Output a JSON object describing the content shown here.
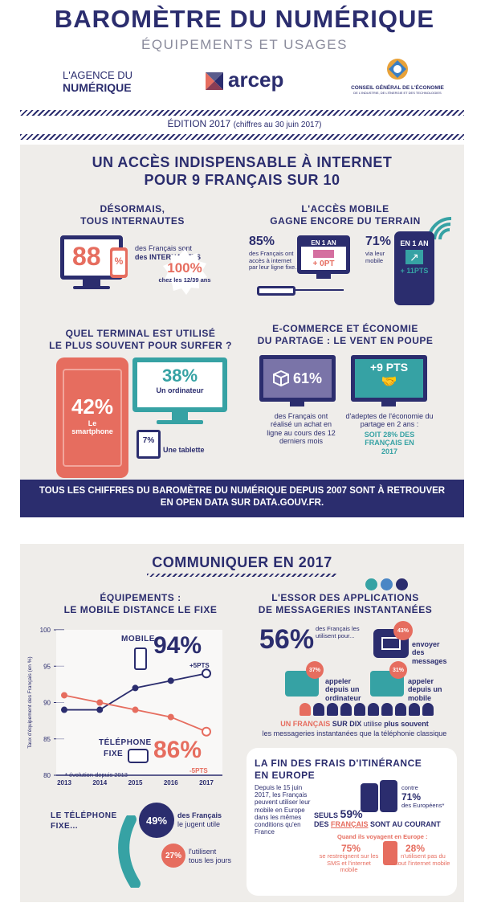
{
  "header": {
    "title": "BAROMÈTRE DU NUMÉRIQUE",
    "subtitle": "ÉQUIPEMENTS ET USAGES",
    "logo_agence_line1": "L'AGENCE DU",
    "logo_agence_line2": "NUMÉRIQUE",
    "logo_arcep": "arcep",
    "logo_cge_line1": "CONSEIL GÉNÉRAL DE L'ÉCONOMIE",
    "logo_cge_line2": "DE L'INDUSTRIE, DE L'ÉNERGIE ET DES TECHNOLOGIES",
    "edition": "ÉDITION 2017",
    "edition_note": "(chiffres au 30 juin 2017)"
  },
  "section1": {
    "title_line1": "UN ACCÈS INDISPENSABLE À INTERNET",
    "title_line2": "POUR 9 FRANÇAIS SUR 10",
    "internautes": {
      "heading_line1": "DÉSORMAIS,",
      "heading_line2": "TOUS INTERNAUTES",
      "value": "88",
      "pct": "%",
      "text1": "des Français sont",
      "text2": "des INTERNAUTES",
      "badge_value": "100%",
      "badge_text": "chez les 12/39 ans"
    },
    "mobile": {
      "heading_line1": "L'ACCÈS MOBILE",
      "heading_line2": "GAGNE ENCORE DU TERRAIN",
      "fixe_value": "85%",
      "fixe_text": "des Français ont accès à internet par leur ligne fixe...",
      "fixe_box_label": "EN 1 AN",
      "fixe_box_value": "+ 0PT",
      "mobile_value": "71%",
      "mobile_text": "via leur mobile",
      "mobile_box_label": "EN 1 AN",
      "mobile_box_value": "+ 11PTS"
    },
    "terminal": {
      "heading_line1": "QUEL TERMINAL EST UTILISÉ",
      "heading_line2": "LE PLUS SOUVENT POUR SURFER ?",
      "smartphone_value": "42%",
      "smartphone_label_line1": "Le",
      "smartphone_label_line2": "smartphone",
      "ordinateur_value": "38%",
      "ordinateur_label": "Un ordinateur",
      "tablette_value": "7%",
      "tablette_label": "Une tablette"
    },
    "ecommerce": {
      "heading_line1": "E-COMMERCE ET ÉCONOMIE",
      "heading_line2": "DU PARTAGE : LE VENT EN POUPE",
      "achat_value": "61%",
      "achat_text": "des Français ont réalisé un achat en ligne au cours des 12 derniers mois",
      "partage_value": "+9 PTS",
      "partage_text": "d'adeptes de l'économie du partage en 2 ans :",
      "partage_highlight": "SOIT 28% DES FRANÇAIS EN 2017"
    },
    "banner_line1": "TOUS LES CHIFFRES DU BAROMÈTRE DU NUMÉRIQUE DEPUIS 2007 SONT À RETROUVER",
    "banner_line2": "EN OPEN DATA SUR DATA.GOUV.FR."
  },
  "section2": {
    "title": "COMMUNIQUER EN 2017",
    "equipements": {
      "heading_line1": "ÉQUIPEMENTS :",
      "heading_line2": "LE MOBILE DISTANCE LE FIXE",
      "mobile_label": "MOBILE",
      "mobile_value": "94%",
      "mobile_delta": "+5PTS",
      "fixe_label_line1": "TÉLÉPHONE",
      "fixe_label_line2": "FIXE",
      "fixe_value": "86%",
      "fixe_delta": "-5PTS",
      "footnote": "* évolution depuis 2013"
    },
    "telephone_fixe": {
      "label_line1": "LE TÉLÉPHONE",
      "label_line2": "FIXE...",
      "value1": "49%",
      "text1_line1": "des Français",
      "text1_line2": "le jugent utile",
      "value2": "27%",
      "text2_line1": "l'utilisent",
      "text2_line2": "tous les jours"
    },
    "messageries": {
      "heading_line1": "L'ESSOR DES APPLICATIONS",
      "heading_line2": "DE MESSAGERIES INSTANTANÉES",
      "value": "56%",
      "text": "des Français les utilisent pour...",
      "messages_value": "43%",
      "messages_text": "envoyer des messages",
      "ordinateur_value": "37%",
      "ordinateur_text": "appeler depuis un ordinateur",
      "mobile_value": "31%",
      "mobile_text": "appeler depuis un mobile",
      "dix_highlight": "UN FRANÇAIS",
      "dix_bold": "SUR DIX",
      "dix_text": "utilise",
      "dix_bold2": "plus souvent",
      "dix_line2": "les messageries instantanées que la téléphonie classique"
    },
    "itinerance": {
      "heading_line1": "LA FIN DES FRAIS D'ITINÉRANCE",
      "heading_line2": "EN EUROPE",
      "text": "Depuis le 15 juin 2017, les Français peuvent utiliser leur mobile en Europe dans les mêmes conditions qu'en France",
      "contre_text": "contre",
      "europeens_value": "71%",
      "europeens_text": "des Européens*",
      "seuls_text": "SEULS",
      "seuls_value": "59%",
      "des_text": "DES",
      "francais_text": "FRANÇAIS",
      "courant_text": "SONT AU COURANT",
      "voyage_text": "Quand ils voyagent en Europe :",
      "restreignent_value": "75%",
      "restreignent_text": "se restreignent sur les SMS et l'internet mobile",
      "nutilisent_value": "28%",
      "nutilisent_text": "n'utilisent pas du tout l'internet mobile"
    }
  },
  "chart_data": {
    "type": "line",
    "x": [
      "2013",
      "2014",
      "2015",
      "2016",
      "2017"
    ],
    "series": [
      {
        "name": "MOBILE",
        "values": [
          89,
          89,
          92,
          93,
          94
        ]
      },
      {
        "name": "TÉLÉPHONE FIXE",
        "values": [
          91,
          90,
          89,
          88,
          86
        ]
      }
    ],
    "yticks": [
      "100",
      "95",
      "90",
      "85",
      "80"
    ],
    "ylim": [
      80,
      100
    ],
    "ylabel": "Taux d'équipement des Français (en %)"
  },
  "colors": {
    "navy": "#2b2d6e",
    "coral": "#e66d5f",
    "teal": "#36a2a4",
    "panel": "#efedea"
  }
}
